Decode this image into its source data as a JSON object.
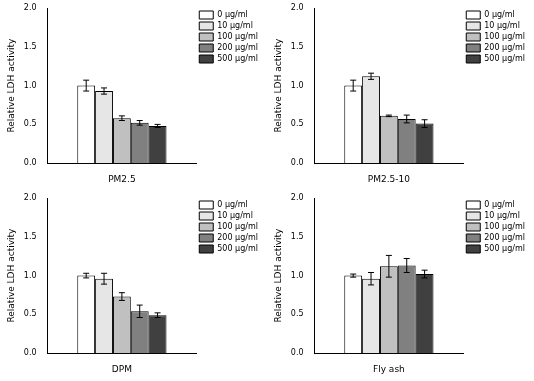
{
  "chart_data": [
    {
      "type": "bar",
      "categories": [
        "PM2.5"
      ],
      "ylabel": "Relative LDH activity",
      "ylim": [
        0,
        2
      ],
      "yticks": [
        {
          "value": 0,
          "label": "0.0"
        },
        {
          "value": 0.5,
          "label": "0.5"
        },
        {
          "value": 1,
          "label": "1.0"
        },
        {
          "value": 1.5,
          "label": "1.5"
        },
        {
          "value": 2,
          "label": "2.0"
        }
      ],
      "grid": false,
      "legend": "upper right",
      "series": [
        {
          "name": "0 µg/ml",
          "color": "#ffffff",
          "values": [
            1.0
          ],
          "errors": [
            0.07
          ]
        },
        {
          "name": "10 µg/ml",
          "color": "#e6e6e6",
          "values": [
            0.93
          ],
          "errors": [
            0.04
          ]
        },
        {
          "name": "100 µg/ml",
          "color": "#c0c0c0",
          "values": [
            0.58
          ],
          "errors": [
            0.03
          ]
        },
        {
          "name": "200 µg/ml",
          "color": "#808080",
          "values": [
            0.52
          ],
          "errors": [
            0.03
          ]
        },
        {
          "name": "500 µg/ml",
          "color": "#404040",
          "values": [
            0.48
          ],
          "errors": [
            0.02
          ]
        }
      ]
    },
    {
      "type": "bar",
      "categories": [
        "PM2.5-10"
      ],
      "ylabel": "Relative LDH activity",
      "ylim": [
        0,
        2
      ],
      "yticks": [
        {
          "value": 0,
          "label": "0.0"
        },
        {
          "value": 0.5,
          "label": "0.5"
        },
        {
          "value": 1,
          "label": "1.0"
        },
        {
          "value": 1.5,
          "label": "1.5"
        },
        {
          "value": 2,
          "label": "2.0"
        }
      ],
      "grid": false,
      "legend": "upper right",
      "series": [
        {
          "name": "0 µg/ml",
          "color": "#ffffff",
          "values": [
            1.0
          ],
          "errors": [
            0.07
          ]
        },
        {
          "name": "10 µg/ml",
          "color": "#e6e6e6",
          "values": [
            1.12
          ],
          "errors": [
            0.04
          ]
        },
        {
          "name": "100 µg/ml",
          "color": "#c0c0c0",
          "values": [
            0.61
          ],
          "errors": [
            0.01
          ]
        },
        {
          "name": "200 µg/ml",
          "color": "#808080",
          "values": [
            0.57
          ],
          "errors": [
            0.05
          ]
        },
        {
          "name": "500 µg/ml",
          "color": "#404040",
          "values": [
            0.51
          ],
          "errors": [
            0.05
          ]
        }
      ]
    },
    {
      "type": "bar",
      "categories": [
        "DPM"
      ],
      "ylabel": "Relative LDH activity",
      "ylim": [
        0,
        2
      ],
      "yticks": [
        {
          "value": 0,
          "label": "0.0"
        },
        {
          "value": 0.5,
          "label": "0.5"
        },
        {
          "value": 1,
          "label": "1.0"
        },
        {
          "value": 1.5,
          "label": "1.5"
        },
        {
          "value": 2,
          "label": "2.0"
        }
      ],
      "grid": false,
      "legend": "upper right",
      "series": [
        {
          "name": "0 µg/ml",
          "color": "#ffffff",
          "values": [
            1.0
          ],
          "errors": [
            0.03
          ]
        },
        {
          "name": "10 µg/ml",
          "color": "#e6e6e6",
          "values": [
            0.96
          ],
          "errors": [
            0.07
          ]
        },
        {
          "name": "100 µg/ml",
          "color": "#c0c0c0",
          "values": [
            0.73
          ],
          "errors": [
            0.05
          ]
        },
        {
          "name": "200 µg/ml",
          "color": "#808080",
          "values": [
            0.54
          ],
          "errors": [
            0.08
          ]
        },
        {
          "name": "500 µg/ml",
          "color": "#404040",
          "values": [
            0.49
          ],
          "errors": [
            0.03
          ]
        }
      ]
    },
    {
      "type": "bar",
      "categories": [
        "Fly ash"
      ],
      "ylabel": "Relative LDH activity",
      "ylim": [
        0,
        2
      ],
      "yticks": [
        {
          "value": 0,
          "label": "0.0"
        },
        {
          "value": 0.5,
          "label": "0.5"
        },
        {
          "value": 1,
          "label": "1.0"
        },
        {
          "value": 1.5,
          "label": "1.5"
        },
        {
          "value": 2,
          "label": "2.0"
        }
      ],
      "grid": false,
      "legend": "upper right",
      "series": [
        {
          "name": "0 µg/ml",
          "color": "#ffffff",
          "values": [
            1.0
          ],
          "errors": [
            0.02
          ]
        },
        {
          "name": "10 µg/ml",
          "color": "#e6e6e6",
          "values": [
            0.96
          ],
          "errors": [
            0.08
          ]
        },
        {
          "name": "100 µg/ml",
          "color": "#c0c0c0",
          "values": [
            1.12
          ],
          "errors": [
            0.14
          ]
        },
        {
          "name": "200 µg/ml",
          "color": "#808080",
          "values": [
            1.13
          ],
          "errors": [
            0.09
          ]
        },
        {
          "name": "500 µg/ml",
          "color": "#404040",
          "values": [
            1.02
          ],
          "errors": [
            0.05
          ]
        }
      ]
    }
  ]
}
